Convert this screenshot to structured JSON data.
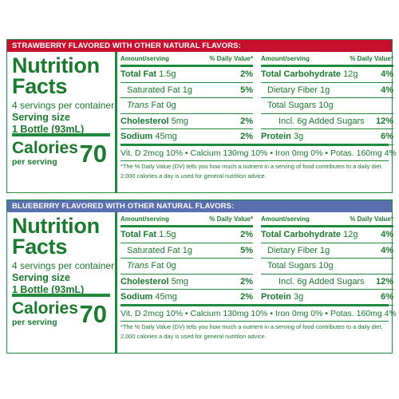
{
  "panels": [
    {
      "banner": "STRAWBERRY FLAVORED WITH OTHER NATURAL FLAVORS:",
      "title_line1": "Nutrition",
      "title_line2": "Facts",
      "servings": "4 servings per container",
      "serving_size_label": "Serving size",
      "serving_size_value": "1 Bottle (93mL)",
      "calories_label": "Calories",
      "calories_per": "per serving",
      "calories_value": "70",
      "col_amount": "Amount/serving",
      "col_dv": "% Daily Value*",
      "left_rows": [
        {
          "name": "Total Fat",
          "amount": "1.5g",
          "dv": "2%"
        },
        {
          "name": "Saturated Fat",
          "amount": "1g",
          "dv": "5%"
        },
        {
          "name": "Trans",
          "amount": "Fat 0g",
          "dv": ""
        },
        {
          "name": "Cholesterol",
          "amount": "5mg",
          "dv": "2%"
        },
        {
          "name": "Sodium",
          "amount": "45mg",
          "dv": "2%"
        }
      ],
      "right_rows": [
        {
          "name": "Total Carbohydrate",
          "amount": "12g",
          "dv": "4%"
        },
        {
          "name": "Dietary Fiber",
          "amount": "1g",
          "dv": "4%"
        },
        {
          "name": "Total Sugars",
          "amount": "10g",
          "dv": ""
        },
        {
          "name": "Incl. 6g Added Sugars",
          "amount": "",
          "dv": "12%"
        },
        {
          "name": "Protein",
          "amount": "3g",
          "dv": "6%"
        }
      ],
      "vitamins": "Vit. D 2mcg 10% • Calcium 130mg 10% • Iron 0mg 0% • Potas. 160mg 4%",
      "footnote_line1": "*The % Daily Value (DV) tells you how much a nutrient in a serving of food contributes to a daily diet.",
      "footnote_line2": "2,000 calories a day is used for general nutrition advice."
    },
    {
      "banner": "BLUEBERRY FLAVORED WITH OTHER NATURAL FLAVORS:",
      "title_line1": "Nutrition",
      "title_line2": "Facts",
      "servings": "4 servings per container",
      "serving_size_label": "Serving size",
      "serving_size_value": "1 Bottle (93mL)",
      "calories_label": "Calories",
      "calories_per": "per serving",
      "calories_value": "70",
      "col_amount": "Amount/serving",
      "col_dv": "% Daily Value*",
      "left_rows": [
        {
          "name": "Total Fat",
          "amount": "1.5g",
          "dv": "2%"
        },
        {
          "name": "Saturated Fat",
          "amount": "1g",
          "dv": "5%"
        },
        {
          "name": "Trans",
          "amount": "Fat 0g",
          "dv": ""
        },
        {
          "name": "Cholesterol",
          "amount": "5mg",
          "dv": "2%"
        },
        {
          "name": "Sodium",
          "amount": "45mg",
          "dv": "2%"
        }
      ],
      "right_rows": [
        {
          "name": "Total Carbohydrate",
          "amount": "12g",
          "dv": "4%"
        },
        {
          "name": "Dietary Fiber",
          "amount": "1g",
          "dv": "4%"
        },
        {
          "name": "Total Sugars",
          "amount": "10g",
          "dv": ""
        },
        {
          "name": "Incl. 6g Added Sugars",
          "amount": "",
          "dv": "12%"
        },
        {
          "name": "Protein",
          "amount": "3g",
          "dv": "6%"
        }
      ],
      "vitamins": "Vit. D 2mcg 10% • Calcium 130mg 10% • Iron 0mg 0% • Potas. 160mg 4%",
      "footnote_line1": "*The % Daily Value (DV) tells you how much a nutrient in a serving of food contributes to a daily diet.",
      "footnote_line2": "2,000 calories a day is used for general nutrition advice."
    }
  ]
}
